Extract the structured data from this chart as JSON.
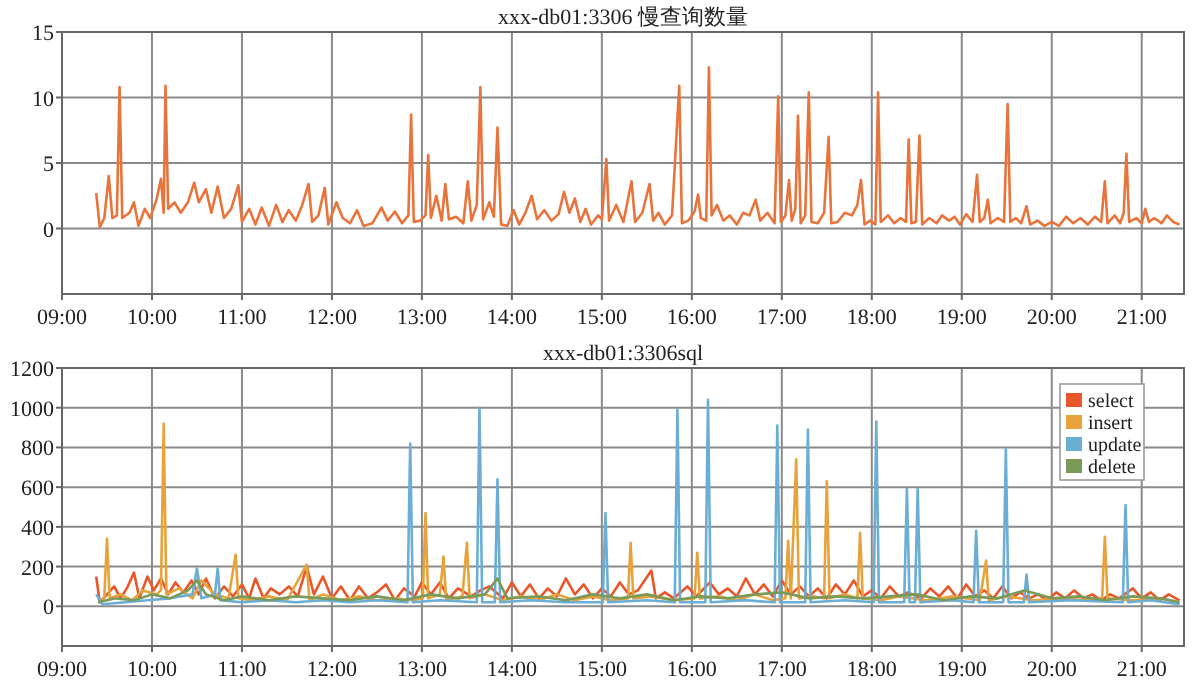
{
  "chart_data": [
    {
      "type": "line",
      "title": "xxx-db01:3306 慢查询数量",
      "xlim": [
        9,
        21.47
      ],
      "ylim": [
        -5,
        15
      ],
      "xticks": [
        {
          "value": 9,
          "label": "09:00"
        },
        {
          "value": 10,
          "label": "10:00"
        },
        {
          "value": 11,
          "label": "11:00"
        },
        {
          "value": 12,
          "label": "12:00"
        },
        {
          "value": 13,
          "label": "13:00"
        },
        {
          "value": 14,
          "label": "14:00"
        },
        {
          "value": 15,
          "label": "15:00"
        },
        {
          "value": 16,
          "label": "16:00"
        },
        {
          "value": 17,
          "label": "17:00"
        },
        {
          "value": 18,
          "label": "18:00"
        },
        {
          "value": 19,
          "label": "19:00"
        },
        {
          "value": 20,
          "label": "20:00"
        },
        {
          "value": 21,
          "label": "21:00"
        }
      ],
      "yticks": [
        0,
        5,
        10,
        15
      ],
      "grid": true,
      "legend": false,
      "series": [
        {
          "color": "#e8743b",
          "x": [
            9.38,
            9.42,
            9.47,
            9.52,
            9.56,
            9.61,
            9.64,
            9.67,
            9.75,
            9.8,
            9.85,
            9.92,
            9.98,
            10.05,
            10.1,
            10.13,
            10.15,
            10.18,
            10.25,
            10.32,
            10.4,
            10.47,
            10.52,
            10.6,
            10.66,
            10.73,
            10.8,
            10.88,
            10.96,
            11.0,
            11.08,
            11.15,
            11.22,
            11.3,
            11.38,
            11.45,
            11.52,
            11.6,
            11.67,
            11.74,
            11.78,
            11.85,
            11.92,
            11.96,
            12.05,
            12.12,
            12.2,
            12.28,
            12.35,
            12.45,
            12.55,
            12.62,
            12.7,
            12.78,
            12.85,
            12.88,
            12.91,
            12.98,
            13.04,
            13.07,
            13.1,
            13.16,
            13.22,
            13.26,
            13.3,
            13.38,
            13.46,
            13.51,
            13.55,
            13.61,
            13.65,
            13.68,
            13.75,
            13.8,
            13.84,
            13.88,
            13.95,
            14.02,
            14.08,
            14.15,
            14.22,
            14.28,
            14.36,
            14.44,
            14.52,
            14.58,
            14.64,
            14.7,
            14.76,
            14.82,
            14.88,
            14.96,
            15.0,
            15.05,
            15.08,
            15.16,
            15.24,
            15.33,
            15.37,
            15.45,
            15.53,
            15.57,
            15.63,
            15.7,
            15.78,
            15.86,
            15.89,
            15.96,
            16.03,
            16.07,
            16.1,
            16.16,
            16.19,
            16.22,
            16.28,
            16.35,
            16.42,
            16.5,
            16.57,
            16.64,
            16.71,
            16.76,
            16.84,
            16.92,
            16.96,
            16.99,
            17.04,
            17.08,
            17.11,
            17.15,
            17.18,
            17.21,
            17.26,
            17.3,
            17.33,
            17.4,
            17.47,
            17.52,
            17.55,
            17.62,
            17.7,
            17.78,
            17.84,
            17.88,
            17.92,
            17.98,
            18.04,
            18.07,
            18.1,
            18.18,
            18.25,
            18.32,
            18.38,
            18.41,
            18.44,
            18.49,
            18.53,
            18.56,
            18.64,
            18.72,
            18.78,
            18.86,
            18.92,
            18.98,
            19.05,
            19.12,
            19.17,
            19.2,
            19.25,
            19.29,
            19.32,
            19.4,
            19.47,
            19.51,
            19.54,
            19.6,
            19.66,
            19.72,
            19.76,
            19.84,
            19.92,
            20.0,
            20.08,
            20.16,
            20.24,
            20.32,
            20.4,
            20.48,
            20.55,
            20.59,
            20.62,
            20.7,
            20.76,
            20.8,
            20.83,
            20.86,
            20.94,
            21.0,
            21.04,
            21.08,
            21.14,
            21.22,
            21.28,
            21.35,
            21.42
          ],
          "values": [
            2.7,
            0.1,
            0.8,
            4.0,
            0.8,
            1.0,
            10.8,
            0.8,
            1.2,
            2.0,
            0.2,
            1.5,
            0.8,
            2.2,
            3.8,
            1.2,
            10.9,
            1.5,
            2.0,
            1.2,
            2.0,
            3.5,
            2.0,
            3.0,
            1.2,
            3.2,
            0.8,
            1.5,
            3.3,
            0.5,
            1.5,
            0.3,
            1.6,
            0.2,
            1.8,
            0.5,
            1.4,
            0.6,
            1.8,
            3.4,
            0.5,
            1.0,
            3.1,
            0.3,
            2.0,
            0.8,
            0.4,
            1.4,
            0.2,
            0.4,
            1.6,
            0.6,
            1.3,
            0.4,
            1.0,
            8.7,
            0.5,
            0.6,
            1.0,
            5.6,
            0.8,
            2.5,
            0.6,
            3.4,
            0.7,
            0.9,
            0.4,
            3.6,
            0.6,
            1.8,
            10.8,
            0.7,
            2.0,
            0.9,
            7.7,
            0.3,
            0.2,
            1.4,
            0.3,
            1.2,
            2.5,
            0.7,
            1.4,
            0.6,
            1.1,
            2.8,
            1.2,
            2.3,
            0.5,
            1.5,
            0.3,
            1.0,
            0.7,
            5.3,
            0.6,
            1.8,
            0.5,
            3.6,
            0.5,
            1.2,
            3.4,
            0.6,
            1.2,
            0.3,
            1.0,
            10.9,
            0.4,
            0.6,
            1.3,
            2.6,
            0.8,
            0.6,
            12.3,
            1.0,
            1.8,
            0.6,
            1.0,
            0.3,
            1.2,
            1.0,
            2.2,
            0.6,
            1.2,
            0.4,
            10.1,
            0.5,
            1.0,
            3.7,
            0.6,
            1.5,
            8.6,
            0.4,
            1.0,
            10.4,
            0.5,
            0.4,
            1.2,
            7.0,
            0.4,
            0.5,
            1.2,
            1.0,
            1.8,
            3.7,
            0.3,
            0.6,
            0.3,
            10.4,
            0.5,
            1.0,
            0.4,
            0.8,
            0.5,
            6.8,
            0.4,
            0.5,
            7.1,
            0.3,
            0.8,
            0.4,
            1.0,
            0.6,
            0.9,
            0.3,
            1.1,
            0.5,
            4.1,
            0.5,
            0.8,
            2.2,
            0.4,
            0.8,
            0.5,
            9.5,
            0.5,
            0.8,
            0.4,
            1.7,
            0.3,
            0.6,
            0.2,
            0.5,
            0.2,
            0.9,
            0.4,
            0.8,
            0.3,
            0.9,
            0.5,
            3.6,
            0.4,
            1.0,
            0.4,
            1.2,
            5.7,
            0.5,
            0.8,
            0.4,
            1.5,
            0.5,
            0.8,
            0.4,
            1.0,
            0.5,
            0.3
          ]
        }
      ]
    },
    {
      "type": "line",
      "title": "xxx-db01:3306sql",
      "xlim": [
        9,
        21.47
      ],
      "ylim": [
        -200,
        1200
      ],
      "xticks": [
        {
          "value": 9,
          "label": "09:00"
        },
        {
          "value": 10,
          "label": "10:00"
        },
        {
          "value": 11,
          "label": "11:00"
        },
        {
          "value": 12,
          "label": "12:00"
        },
        {
          "value": 13,
          "label": "13:00"
        },
        {
          "value": 14,
          "label": "14:00"
        },
        {
          "value": 15,
          "label": "15:00"
        },
        {
          "value": 16,
          "label": "16:00"
        },
        {
          "value": 17,
          "label": "17:00"
        },
        {
          "value": 18,
          "label": "18:00"
        },
        {
          "value": 19,
          "label": "19:00"
        },
        {
          "value": 20,
          "label": "20:00"
        },
        {
          "value": 21,
          "label": "21:00"
        }
      ],
      "yticks": [
        0,
        200,
        400,
        600,
        800,
        1000,
        1200
      ],
      "grid": true,
      "legend": "top right",
      "series": [
        {
          "name": "select",
          "color": "#e8562a",
          "x": [
            9.38,
            9.42,
            9.5,
            9.58,
            9.65,
            9.72,
            9.8,
            9.86,
            9.95,
            10.02,
            10.1,
            10.18,
            10.26,
            10.35,
            10.44,
            10.52,
            10.6,
            10.7,
            10.8,
            10.9,
            11.0,
            11.08,
            11.15,
            11.24,
            11.32,
            11.42,
            11.52,
            11.62,
            11.72,
            11.8,
            11.9,
            12.0,
            12.1,
            12.2,
            12.3,
            12.4,
            12.5,
            12.6,
            12.7,
            12.8,
            12.92,
            13.0,
            13.1,
            13.2,
            13.3,
            13.4,
            13.55,
            13.65,
            13.75,
            13.9,
            14.0,
            14.1,
            14.2,
            14.3,
            14.4,
            14.5,
            14.6,
            14.7,
            14.8,
            14.9,
            15.0,
            15.1,
            15.2,
            15.3,
            15.4,
            15.55,
            15.6,
            15.7,
            15.8,
            15.95,
            16.05,
            16.2,
            16.3,
            16.4,
            16.5,
            16.6,
            16.7,
            16.8,
            16.9,
            17.0,
            17.1,
            17.2,
            17.3,
            17.4,
            17.5,
            17.6,
            17.7,
            17.8,
            17.9,
            18.0,
            18.1,
            18.2,
            18.3,
            18.4,
            18.55,
            18.65,
            18.75,
            18.85,
            18.95,
            19.05,
            19.15,
            19.25,
            19.35,
            19.45,
            19.55,
            19.65,
            19.75,
            19.85,
            19.95,
            20.05,
            20.15,
            20.25,
            20.35,
            20.45,
            20.55,
            20.65,
            20.75,
            20.9,
            21.0,
            21.1,
            21.2,
            21.3,
            21.42
          ],
          "values": [
            150,
            20,
            60,
            100,
            40,
            90,
            170,
            40,
            150,
            80,
            140,
            60,
            120,
            70,
            130,
            60,
            140,
            40,
            100,
            50,
            110,
            40,
            140,
            40,
            90,
            60,
            100,
            50,
            200,
            60,
            150,
            40,
            100,
            30,
            100,
            40,
            70,
            110,
            30,
            90,
            50,
            120,
            60,
            120,
            40,
            90,
            50,
            80,
            100,
            40,
            120,
            50,
            110,
            40,
            90,
            50,
            140,
            60,
            110,
            40,
            90,
            50,
            120,
            60,
            80,
            180,
            40,
            70,
            40,
            100,
            50,
            120,
            60,
            90,
            50,
            140,
            60,
            110,
            50,
            130,
            60,
            100,
            50,
            90,
            40,
            110,
            60,
            130,
            50,
            80,
            40,
            100,
            50,
            70,
            40,
            90,
            50,
            100,
            40,
            110,
            50,
            80,
            40,
            100,
            40,
            70,
            40,
            60,
            30,
            70,
            40,
            80,
            40,
            60,
            30,
            60,
            40,
            90,
            40,
            70,
            30,
            60,
            30
          ]
        },
        {
          "name": "insert",
          "color": "#e8a23a",
          "x": [
            9.4,
            9.47,
            9.5,
            9.53,
            9.65,
            9.78,
            9.9,
            10.05,
            10.1,
            10.13,
            10.16,
            10.3,
            10.45,
            10.55,
            10.7,
            10.85,
            10.93,
            10.96,
            11.1,
            11.3,
            11.5,
            11.72,
            11.75,
            11.9,
            12.1,
            12.3,
            12.5,
            12.7,
            12.9,
            13.01,
            13.04,
            13.07,
            13.2,
            13.24,
            13.27,
            13.45,
            13.5,
            13.53,
            13.7,
            13.9,
            14.1,
            14.3,
            14.5,
            14.7,
            14.9,
            15.1,
            15.29,
            15.32,
            15.35,
            15.55,
            15.8,
            16.03,
            16.06,
            16.09,
            16.3,
            16.5,
            16.7,
            16.9,
            17.04,
            17.07,
            17.1,
            17.16,
            17.19,
            17.35,
            17.47,
            17.5,
            17.53,
            17.7,
            17.84,
            17.87,
            17.9,
            18.1,
            18.3,
            18.6,
            18.9,
            19.2,
            19.27,
            19.3,
            19.5,
            19.8,
            20.1,
            20.4,
            20.56,
            20.59,
            20.62,
            20.9,
            21.2,
            21.42
          ],
          "values": [
            30,
            40,
            340,
            40,
            60,
            30,
            80,
            60,
            80,
            920,
            60,
            90,
            40,
            130,
            60,
            40,
            260,
            40,
            30,
            50,
            30,
            210,
            30,
            60,
            30,
            50,
            30,
            40,
            30,
            40,
            470,
            40,
            60,
            250,
            30,
            50,
            320,
            40,
            60,
            30,
            50,
            30,
            60,
            30,
            50,
            30,
            40,
            320,
            40,
            50,
            30,
            40,
            270,
            40,
            50,
            30,
            60,
            30,
            40,
            330,
            40,
            740,
            40,
            50,
            40,
            630,
            40,
            60,
            40,
            370,
            40,
            30,
            50,
            30,
            50,
            30,
            230,
            30,
            50,
            30,
            40,
            30,
            40,
            350,
            40,
            30,
            40,
            20
          ]
        },
        {
          "name": "update",
          "color": "#6aaed6",
          "x": [
            9.38,
            9.45,
            9.7,
            9.95,
            10.2,
            10.45,
            10.5,
            10.55,
            10.7,
            10.73,
            10.76,
            11.0,
            11.3,
            11.6,
            11.9,
            12.2,
            12.5,
            12.84,
            12.87,
            12.9,
            13.2,
            13.61,
            13.64,
            13.67,
            13.81,
            13.84,
            13.87,
            14.2,
            14.6,
            15.01,
            15.04,
            15.07,
            15.5,
            15.81,
            15.84,
            15.87,
            16.15,
            16.18,
            16.21,
            16.6,
            16.92,
            16.95,
            16.98,
            17.26,
            17.29,
            17.32,
            17.7,
            18.02,
            18.05,
            18.08,
            18.36,
            18.39,
            18.42,
            18.48,
            18.51,
            18.54,
            18.9,
            19.13,
            19.16,
            19.19,
            19.46,
            19.49,
            19.52,
            19.69,
            19.72,
            19.75,
            20.2,
            20.79,
            20.82,
            20.85,
            21.1,
            21.42
          ],
          "values": [
            60,
            10,
            20,
            30,
            40,
            60,
            190,
            40,
            60,
            190,
            30,
            20,
            30,
            20,
            30,
            20,
            30,
            20,
            820,
            20,
            30,
            20,
            1000,
            20,
            20,
            640,
            20,
            30,
            20,
            20,
            470,
            20,
            30,
            20,
            990,
            20,
            20,
            1040,
            20,
            30,
            20,
            910,
            20,
            20,
            890,
            20,
            30,
            20,
            930,
            20,
            20,
            590,
            20,
            20,
            590,
            20,
            30,
            20,
            380,
            20,
            20,
            790,
            20,
            20,
            160,
            20,
            30,
            20,
            510,
            20,
            30,
            10
          ]
        },
        {
          "name": "delete",
          "color": "#7a9a5a",
          "x": [
            9.4,
            9.6,
            9.8,
            10.0,
            10.2,
            10.4,
            10.5,
            10.6,
            10.8,
            11.0,
            11.3,
            11.6,
            11.9,
            12.2,
            12.5,
            12.8,
            13.1,
            13.4,
            13.7,
            13.84,
            13.95,
            14.3,
            14.6,
            14.9,
            15.2,
            15.5,
            15.8,
            16.1,
            16.4,
            16.7,
            17.0,
            17.3,
            17.6,
            17.9,
            18.2,
            18.5,
            18.8,
            19.1,
            19.4,
            19.7,
            20.0,
            20.3,
            20.6,
            20.9,
            21.2,
            21.42
          ],
          "values": [
            20,
            40,
            30,
            60,
            40,
            80,
            130,
            60,
            30,
            50,
            30,
            50,
            40,
            30,
            50,
            30,
            60,
            40,
            60,
            140,
            40,
            50,
            30,
            60,
            40,
            60,
            30,
            50,
            40,
            60,
            70,
            40,
            50,
            40,
            50,
            60,
            30,
            50,
            40,
            80,
            40,
            50,
            30,
            50,
            40,
            20
          ]
        }
      ]
    }
  ]
}
